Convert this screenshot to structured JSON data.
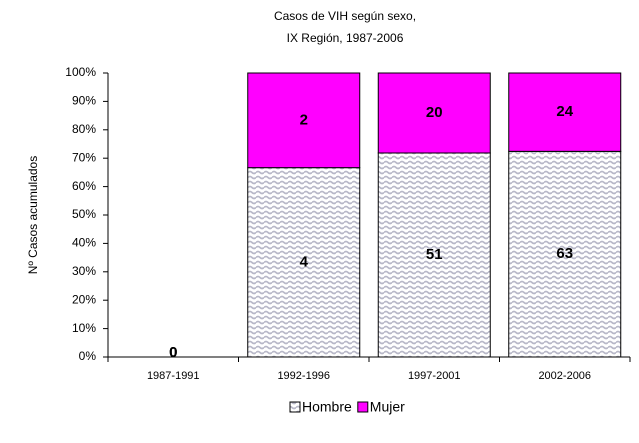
{
  "chart_data": {
    "type": "bar",
    "stacking": "percent",
    "title": [
      "Casos de VIH según sexo,",
      "IX Región, 1987-2006"
    ],
    "y_label": "Nº Casos acumulados",
    "categories": [
      "1987-1991",
      "1992-1996",
      "1997-2001",
      "2002-2006"
    ],
    "series": [
      {
        "name": "Hombre",
        "color": "#c9c9d9",
        "pattern": true,
        "values": [
          0,
          4,
          51,
          63
        ]
      },
      {
        "name": "Mujer",
        "color": "#ff00ff",
        "values": [
          0,
          2,
          20,
          24
        ]
      }
    ],
    "ylim": [
      0,
      100
    ],
    "yticks": [
      {
        "value": 0,
        "label": "0%"
      },
      {
        "value": 10,
        "label": "10%"
      },
      {
        "value": 20,
        "label": "20%"
      },
      {
        "value": 30,
        "label": "30%"
      },
      {
        "value": 40,
        "label": "40%"
      },
      {
        "value": 50,
        "label": "50%"
      },
      {
        "value": 60,
        "label": "60%"
      },
      {
        "value": 70,
        "label": "70%"
      },
      {
        "value": 80,
        "label": "80%"
      },
      {
        "value": 90,
        "label": "90%"
      },
      {
        "value": 100,
        "label": "100%"
      }
    ],
    "legend": "bottom"
  }
}
